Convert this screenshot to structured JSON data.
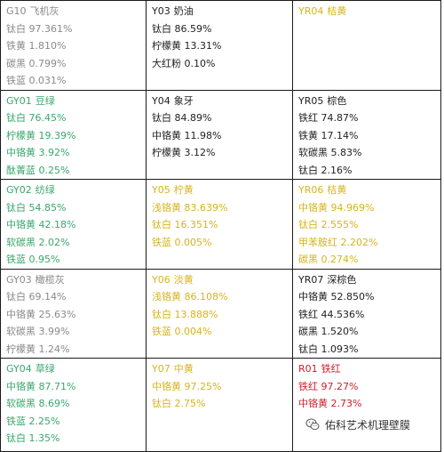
{
  "colors": {
    "gray": "#8a8a8a",
    "black": "#222222",
    "green": "#3aa76d",
    "yellow": "#d6b41e",
    "red": "#d0202a"
  },
  "watermark": {
    "icon": "wechat-icon",
    "text": "佑科艺术机理壁膜"
  },
  "cells": {
    "g10": {
      "code": "G10",
      "name": "飞机灰",
      "lines": [
        "钛白 97.361%",
        "铁黄 1.810%",
        "碳黑 0.799%",
        "铁蓝 0.031%"
      ]
    },
    "y03": {
      "code": "Y03",
      "name": "奶油",
      "lines": [
        "钛白 86.59%",
        "柠檬黄 13.31%",
        "大红粉 0.10%"
      ]
    },
    "yr04": {
      "code": "YR04",
      "name": "桔黄",
      "lines": []
    },
    "gy01": {
      "code": "GY01",
      "name": "豆绿",
      "lines": [
        "钛白 76.45%",
        "柠檬黄 19.39%",
        "中铬黄 3.92%",
        "酞菁蓝 0.25%"
      ]
    },
    "y04": {
      "code": "Y04",
      "name": "象牙",
      "lines": [
        "钛白 84.89%",
        "中铬黄 11.98%",
        "柠檬黄 3.12%"
      ]
    },
    "yr05": {
      "code": "YR05",
      "name": "棕色",
      "lines": [
        "铁红 74.87%",
        "铁黄 17.14%",
        "软碳黑 5.83%",
        "钛白 2.16%"
      ]
    },
    "gy02": {
      "code": "GY02",
      "name": "纺绿",
      "lines": [
        "钛白 54.85%",
        "中铬黄 42.18%",
        "软碳黑 2.02%",
        "铁蓝 0.95%"
      ]
    },
    "y05": {
      "code": "Y05",
      "name": "柠黄",
      "lines": [
        "浅铬黄 83.639%",
        "钛白 16.351%",
        "铁蓝 0.005%"
      ]
    },
    "yr06": {
      "code": "YR06",
      "name": "桔黄",
      "lines": [
        "中铬黄 94.969%",
        "钛白 2.555%",
        "甲苯胺红 2.202%",
        "碳黑 0.274%"
      ]
    },
    "gy03": {
      "code": "GY03",
      "name": "橄榄灰",
      "lines": [
        "钛白 69.14%",
        "中铬黄 25.63%",
        "软碳黑 3.99%",
        "柠檬黄 1.24%"
      ]
    },
    "y06": {
      "code": "Y06",
      "name": "淡黄",
      "lines": [
        "浅铬黄 86.108%",
        "钛白 13.888%",
        "铁蓝 0.004%"
      ]
    },
    "yr07": {
      "code": "YR07",
      "name": "深棕色",
      "lines": [
        "中铬黄 52.850%",
        "铁红 44.536%",
        "碳黑 1.520%",
        "钛白 1.093%"
      ]
    },
    "gy04": {
      "code": "GY04",
      "name": "草绿",
      "lines": [
        "中铬黄 87.71%",
        "软碳黑 8.69%",
        "铁蓝 2.25%",
        "钛白 1.35%"
      ]
    },
    "y07": {
      "code": "Y07",
      "name": "中黄",
      "lines": [
        "中铬黄 97.25%",
        "钛白 2.75%"
      ]
    },
    "r01": {
      "code": "R01",
      "name": "铁红",
      "lines": [
        "铁红 97.27%",
        "中铬黄 2.73%"
      ]
    }
  }
}
